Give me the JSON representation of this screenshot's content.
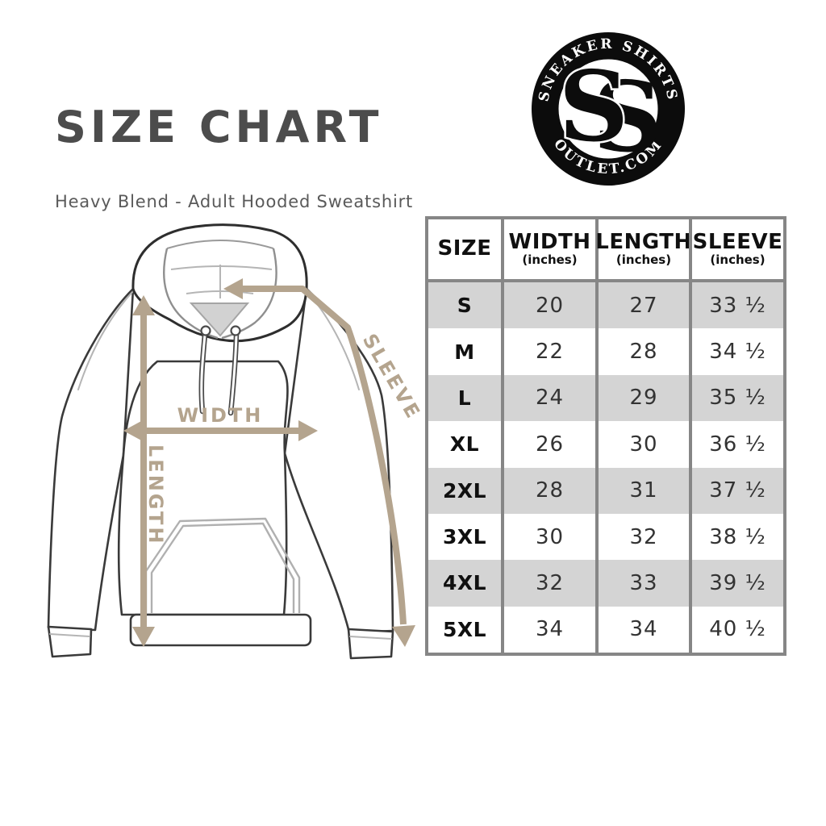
{
  "page": {
    "title": "SIZE CHART",
    "subtitle": "Heavy Blend - Adult Hooded Sweatshirt"
  },
  "logo": {
    "arc_top": "SNEAKER SHIRTS",
    "arc_bottom": "OUTLET.COM",
    "monogram_left": "S",
    "monogram_right": "S"
  },
  "diagram": {
    "width_label": "WIDTH",
    "length_label": "LENGTH",
    "sleeve_label": "SLEEVE",
    "arrow_color": "#b4a48e"
  },
  "size_table": {
    "headers": [
      {
        "label": "SIZE",
        "sub": ""
      },
      {
        "label": "WIDTH",
        "sub": "(inches)"
      },
      {
        "label": "LENGTH",
        "sub": "(inches)"
      },
      {
        "label": "SLEEVE",
        "sub": "(inches)"
      }
    ],
    "rows": [
      {
        "size": "S",
        "width": "20",
        "length": "27",
        "sleeve": "33 ½"
      },
      {
        "size": "M",
        "width": "22",
        "length": "28",
        "sleeve": "34 ½"
      },
      {
        "size": "L",
        "width": "24",
        "length": "29",
        "sleeve": "35 ½"
      },
      {
        "size": "XL",
        "width": "26",
        "length": "30",
        "sleeve": "36 ½"
      },
      {
        "size": "2XL",
        "width": "28",
        "length": "31",
        "sleeve": "37 ½"
      },
      {
        "size": "3XL",
        "width": "30",
        "length": "32",
        "sleeve": "38 ½"
      },
      {
        "size": "4XL",
        "width": "32",
        "length": "33",
        "sleeve": "39 ½"
      },
      {
        "size": "5XL",
        "width": "34",
        "length": "34",
        "sleeve": "40 ½"
      }
    ],
    "colors": {
      "alt_row": "#d4d4d4",
      "border": "#868686",
      "text": "#333333"
    }
  }
}
